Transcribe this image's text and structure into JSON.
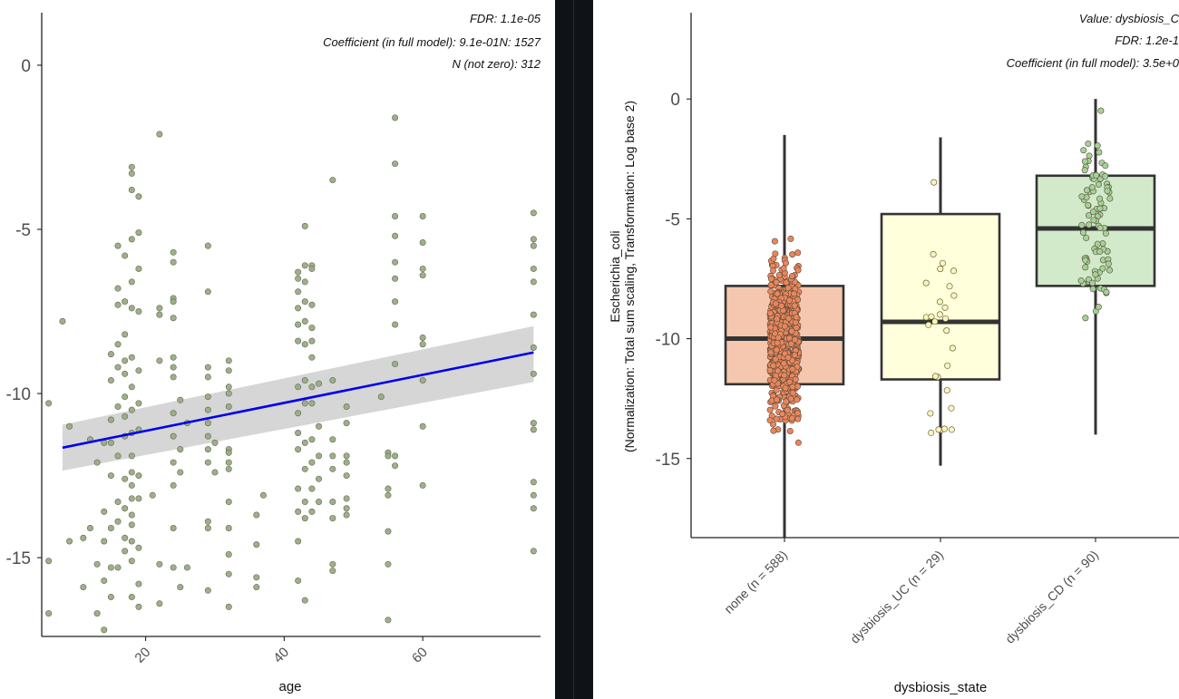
{
  "chart_data": [
    {
      "type": "scatter",
      "xlabel": "age",
      "ylabel": "",
      "xlim": [
        5,
        77
      ],
      "ylim": [
        -17.4,
        1.6
      ],
      "x_ticks": [
        "20",
        "40",
        "60"
      ],
      "y_ticks": [
        "0",
        "-5",
        "-10",
        "-15"
      ],
      "annotations": [
        "FDR: 1.1e-05",
        "Coefficient (in full model): 9.1e-01N: 1527",
        "N (not zero): 312"
      ],
      "regression": {
        "x": [
          8,
          76
        ],
        "y": [
          -11.65,
          -8.75
        ],
        "ci_low_start": -12.35,
        "ci_high_start": -10.95,
        "ci_low_end": -9.65,
        "ci_high_end": -7.95
      },
      "point_color": "#9aab84",
      "line_color": "#0000ee",
      "points": [
        [
          6,
          -10.3
        ],
        [
          6,
          -15.1
        ],
        [
          6,
          -16.7
        ],
        [
          8,
          -7.8
        ],
        [
          9,
          -11
        ],
        [
          9,
          -14.5
        ],
        [
          11,
          -14.4
        ],
        [
          11,
          -15.9
        ],
        [
          12,
          -11.4
        ],
        [
          12,
          -14.1
        ],
        [
          13,
          -15.2
        ],
        [
          13,
          -16.7
        ],
        [
          13,
          -12.1
        ],
        [
          14,
          -11.5
        ],
        [
          14,
          -13.6
        ],
        [
          14,
          -14.5
        ],
        [
          14,
          -15.7
        ],
        [
          14,
          -17.2
        ],
        [
          15,
          -8.8
        ],
        [
          15,
          -9.6
        ],
        [
          15,
          -10.8
        ],
        [
          15,
          -11.5
        ],
        [
          15,
          -12.5
        ],
        [
          15,
          -14.1
        ],
        [
          15,
          -15.3
        ],
        [
          15,
          -16.2
        ],
        [
          16,
          -5.5
        ],
        [
          16,
          -6.8
        ],
        [
          16,
          -7.3
        ],
        [
          16,
          -8.5
        ],
        [
          16,
          -9.2
        ],
        [
          16,
          -10.4
        ],
        [
          16,
          -11.9
        ],
        [
          16,
          -13.3
        ],
        [
          16,
          -13.9
        ],
        [
          16,
          -15.3
        ],
        [
          17,
          -5.8
        ],
        [
          17,
          -7.2
        ],
        [
          17,
          -8.2
        ],
        [
          17,
          -9
        ],
        [
          17,
          -9.4
        ],
        [
          17,
          -10.1
        ],
        [
          17,
          -10.7
        ],
        [
          17,
          -11.3
        ],
        [
          17,
          -12.6
        ],
        [
          17,
          -13.5
        ],
        [
          17,
          -14.4
        ],
        [
          17,
          -14.8
        ],
        [
          18,
          -3.1
        ],
        [
          18,
          -3.3
        ],
        [
          18,
          -3.8
        ],
        [
          18,
          -5.3
        ],
        [
          18,
          -6.6
        ],
        [
          18,
          -7.4
        ],
        [
          18,
          -8.9
        ],
        [
          18,
          -9.8
        ],
        [
          18,
          -10.5
        ],
        [
          18,
          -11.2
        ],
        [
          18,
          -11.9
        ],
        [
          18,
          -12.4
        ],
        [
          18,
          -12.8
        ],
        [
          18,
          -13.2
        ],
        [
          18,
          -13.7
        ],
        [
          18,
          -14
        ],
        [
          18,
          -14.5
        ],
        [
          18,
          -15.1
        ],
        [
          18,
          -16.2
        ],
        [
          19,
          -4
        ],
        [
          19,
          -5.1
        ],
        [
          19,
          -6.2
        ],
        [
          19,
          -7.5
        ],
        [
          19,
          -9.3
        ],
        [
          19,
          -10.3
        ],
        [
          19,
          -11.1
        ],
        [
          19,
          -12.5
        ],
        [
          19,
          -13.2
        ],
        [
          19,
          -14.7
        ],
        [
          19,
          -15.8
        ],
        [
          19,
          -16.5
        ],
        [
          21,
          -13.1
        ],
        [
          22,
          -2.1
        ],
        [
          22,
          -7.4
        ],
        [
          22,
          -7.6
        ],
        [
          22,
          -9
        ],
        [
          22,
          -15.2
        ],
        [
          22,
          -16.4
        ],
        [
          24,
          -5.7
        ],
        [
          24,
          -6
        ],
        [
          24,
          -7.1
        ],
        [
          24,
          -7.2
        ],
        [
          24,
          -7.7
        ],
        [
          24,
          -8.9
        ],
        [
          24,
          -9.2
        ],
        [
          24,
          -9.5
        ],
        [
          24,
          -10.6
        ],
        [
          24,
          -11.3
        ],
        [
          24,
          -12.1
        ],
        [
          24,
          -12.8
        ],
        [
          24,
          -14.1
        ],
        [
          24,
          -15.3
        ],
        [
          25,
          -10.2
        ],
        [
          25,
          -11.7
        ],
        [
          25,
          -12.4
        ],
        [
          25,
          -15.9
        ],
        [
          26,
          -10.9
        ],
        [
          26,
          -15.3
        ],
        [
          29,
          -5.5
        ],
        [
          29,
          -6.9
        ],
        [
          29,
          -9.2
        ],
        [
          29,
          -9.5
        ],
        [
          29,
          -10.1
        ],
        [
          29,
          -10.5
        ],
        [
          29,
          -10.9
        ],
        [
          29,
          -11.3
        ],
        [
          29,
          -11.7
        ],
        [
          29,
          -12.1
        ],
        [
          29,
          -13.9
        ],
        [
          29,
          -14.1
        ],
        [
          29,
          -16
        ],
        [
          30,
          -11.5
        ],
        [
          30,
          -12.4
        ],
        [
          32,
          -9
        ],
        [
          32,
          -9.3
        ],
        [
          32,
          -9.8
        ],
        [
          32,
          -10
        ],
        [
          32,
          -10.4
        ],
        [
          32,
          -11.7
        ],
        [
          32,
          -11.8
        ],
        [
          32,
          -12.1
        ],
        [
          32,
          -12.3
        ],
        [
          32,
          -13.3
        ],
        [
          32,
          -14.1
        ],
        [
          32,
          -14.9
        ],
        [
          32,
          -15.5
        ],
        [
          32,
          -16.5
        ],
        [
          36,
          -13.7
        ],
        [
          36,
          -14.6
        ],
        [
          36,
          -15.6
        ],
        [
          36,
          -15.9
        ],
        [
          37,
          -13.1
        ],
        [
          42,
          -6.3
        ],
        [
          42,
          -6.5
        ],
        [
          42,
          -6.9
        ],
        [
          42,
          -7.4
        ],
        [
          42,
          -7.9
        ],
        [
          42,
          -8.4
        ],
        [
          42,
          -9.8
        ],
        [
          42,
          -10.6
        ],
        [
          42,
          -11.2
        ],
        [
          42,
          -11.7
        ],
        [
          42,
          -12.9
        ],
        [
          42,
          -13.6
        ],
        [
          42,
          -14.5
        ],
        [
          42,
          -15.7
        ],
        [
          43,
          -4.9
        ],
        [
          43,
          -6.1
        ],
        [
          43,
          -6.6
        ],
        [
          43,
          -7.2
        ],
        [
          43,
          -7.8
        ],
        [
          43,
          -8.5
        ],
        [
          43,
          -9.6
        ],
        [
          43,
          -10.3
        ],
        [
          43,
          -11.5
        ],
        [
          43,
          -12.3
        ],
        [
          43,
          -13.3
        ],
        [
          43,
          -13.8
        ],
        [
          43,
          -16.3
        ],
        [
          44,
          -6.1
        ],
        [
          44,
          -6.2
        ],
        [
          44,
          -7.3
        ],
        [
          44,
          -8
        ],
        [
          44,
          -8.4
        ],
        [
          44,
          -8.9
        ],
        [
          44,
          -9.8
        ],
        [
          44,
          -10.3
        ],
        [
          44,
          -11.4
        ],
        [
          44,
          -12.1
        ],
        [
          44,
          -12.9
        ],
        [
          44,
          -13.6
        ],
        [
          45,
          -9.7
        ],
        [
          45,
          -11
        ],
        [
          45,
          -11.9
        ],
        [
          45,
          -12.6
        ],
        [
          45,
          -13.3
        ],
        [
          47,
          -3.5
        ],
        [
          47,
          -9.6
        ],
        [
          47,
          -11.4
        ],
        [
          47,
          -11.9
        ],
        [
          47,
          -12.3
        ],
        [
          47,
          -13.3
        ],
        [
          47,
          -13.8
        ],
        [
          47,
          -15.2
        ],
        [
          47,
          -15.4
        ],
        [
          49,
          -10.4
        ],
        [
          49,
          -10.9
        ],
        [
          49,
          -11.9
        ],
        [
          49,
          -12.1
        ],
        [
          49,
          -12.5
        ],
        [
          49,
          -13.2
        ],
        [
          49,
          -13.5
        ],
        [
          49,
          -13.7
        ],
        [
          54,
          -10.1
        ],
        [
          55,
          -11.8
        ],
        [
          55,
          -11.9
        ],
        [
          55,
          -12.9
        ],
        [
          55,
          -13.1
        ],
        [
          55,
          -14.2
        ],
        [
          55,
          -15.2
        ],
        [
          55,
          -16.9
        ],
        [
          56,
          -1.6
        ],
        [
          56,
          -3
        ],
        [
          56,
          -4.6
        ],
        [
          56,
          -5.2
        ],
        [
          56,
          -6
        ],
        [
          56,
          -6.5
        ],
        [
          56,
          -7.2
        ],
        [
          56,
          -7.9
        ],
        [
          56,
          -9.1
        ],
        [
          56,
          -11.9
        ],
        [
          56,
          -12.2
        ],
        [
          60,
          -4.6
        ],
        [
          60,
          -5.4
        ],
        [
          60,
          -6.2
        ],
        [
          60,
          -6.4
        ],
        [
          60,
          -8.3
        ],
        [
          60,
          -8.5
        ],
        [
          60,
          -9.6
        ],
        [
          60,
          -11
        ],
        [
          60,
          -12.8
        ],
        [
          76,
          -4.5
        ],
        [
          76,
          -5.3
        ],
        [
          76,
          -5.5
        ],
        [
          76,
          -6.2
        ],
        [
          76,
          -6.6
        ],
        [
          76,
          -7.6
        ],
        [
          76,
          -8.6
        ],
        [
          76,
          -9.4
        ],
        [
          76,
          -10.9
        ],
        [
          76,
          -11.1
        ],
        [
          76,
          -12.7
        ],
        [
          76,
          -13.1
        ],
        [
          76,
          -13.5
        ],
        [
          76,
          -14.8
        ]
      ]
    },
    {
      "type": "box",
      "title_lines": [
        "Value: dysbiosis_C",
        "FDR: 1.2e-1",
        "Coefficient (in full model): 3.5e+0"
      ],
      "xlabel": "dysbiosis_state",
      "ylabel_lines": [
        "Escherichia_coli",
        "(Normalization: Total sum scaling, Transformation: Log base 2)"
      ],
      "ylim": [
        -18.3,
        3.6
      ],
      "y_ticks": [
        "0",
        "-5",
        "-10",
        "-15"
      ],
      "categories": [
        "none (n = 588)",
        "dysbiosis_UC (n = 29)",
        "dysbiosis_CD (n = 90)"
      ],
      "n": [
        588,
        29,
        90
      ],
      "series": [
        {
          "name": "none",
          "q1": -11.9,
          "median": -10.0,
          "q3": -7.8,
          "whisker_low": -18.3,
          "whisker_high": -1.5,
          "fill": "#f4c7ae",
          "point_color": "#e8875d",
          "seed": 7
        },
        {
          "name": "dysbiosis_UC",
          "q1": -11.7,
          "median": -9.3,
          "q3": -4.8,
          "whisker_low": -15.3,
          "whisker_high": -1.6,
          "fill": "#ffffdc",
          "point_color": "#f6f6b8",
          "seed": 13
        },
        {
          "name": "dysbiosis_CD",
          "q1": -7.8,
          "median": -5.4,
          "q3": -3.2,
          "whisker_low": -14.0,
          "whisker_high": 0.0,
          "fill": "#d2eaca",
          "point_color": "#a3d299",
          "seed": 29
        }
      ]
    }
  ]
}
